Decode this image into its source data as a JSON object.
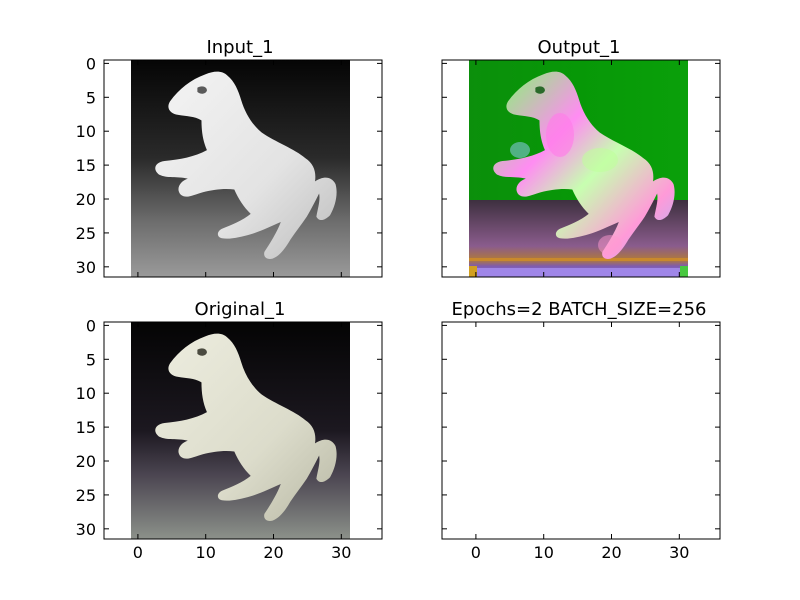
{
  "chart_data": [
    {
      "type": "image",
      "title": "Input_1",
      "content": "grayscale image of a white rearing horse on a dark-to-gray gradient background",
      "image_extent": [
        -0.5,
        31.5
      ],
      "xlim": [
        -5,
        36
      ],
      "ylim": [
        31.5,
        -0.5
      ],
      "xticks": [
        0,
        10,
        20,
        30
      ],
      "yticks": [
        0,
        5,
        10,
        15,
        20,
        25,
        30
      ],
      "x_tick_labels_visible": false,
      "y_tick_labels_visible": true
    },
    {
      "type": "image",
      "title": "Output_1",
      "content": "colorized reconstruction: horse with pink/green/blue color noise on a green background, purple/orange striped ground",
      "image_extent": [
        -0.5,
        31.5
      ],
      "xlim": [
        -5,
        36
      ],
      "ylim": [
        31.5,
        -0.5
      ],
      "xticks": [
        0,
        10,
        20,
        30
      ],
      "yticks": [
        0,
        5,
        10,
        15,
        20,
        25,
        30
      ],
      "x_tick_labels_visible": false,
      "y_tick_labels_visible": false
    },
    {
      "type": "image",
      "title": "Original_1",
      "content": "original color image of a cream-white rearing horse on a dark background with grayish ground",
      "image_extent": [
        -0.5,
        31.5
      ],
      "xlim": [
        -5,
        36
      ],
      "ylim": [
        31.5,
        -0.5
      ],
      "xticks": [
        0,
        10,
        20,
        30
      ],
      "yticks": [
        0,
        5,
        10,
        15,
        20,
        25,
        30
      ],
      "x_tick_labels_visible": true,
      "y_tick_labels_visible": true
    },
    {
      "type": "image",
      "title": "Epochs=2 BATCH_SIZE=256",
      "content": "empty axes",
      "image_extent": null,
      "xlim": [
        -5,
        36
      ],
      "ylim": [
        31.5,
        -0.5
      ],
      "xticks": [
        0,
        10,
        20,
        30
      ],
      "yticks": [
        0,
        5,
        10,
        15,
        20,
        25,
        30
      ],
      "x_tick_labels_visible": true,
      "y_tick_labels_visible": false
    }
  ],
  "colors": {
    "axes_edge": "#000000",
    "background": "#ffffff",
    "output_background_green": "#0a9a0a"
  }
}
